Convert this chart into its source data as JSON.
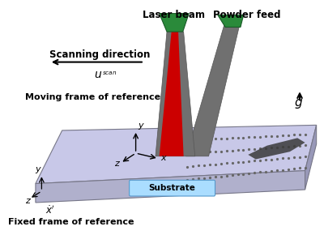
{
  "bg_color": "#ffffff",
  "plate_top_color": "#c8c8e8",
  "plate_front_color": "#b0b0cc",
  "plate_right_color": "#9898b8",
  "plate_edge_color": "#777788",
  "substrate_color": "#aaddff",
  "substrate_text": "Substrate",
  "laser_beam_color": "#cc0000",
  "gray_dark": "#555555",
  "gray_med": "#707070",
  "gray_light": "#909090",
  "nozzle_green_color": "#2a8a3a",
  "nozzle_green_dark": "#1a5a28",
  "labels": {
    "laser_beam": "Laser beam",
    "powder_feed": "Powder feed",
    "scanning_direction": "Scanning direction",
    "moving_frame": "Moving frame of reference",
    "fixed_frame": "Fixed frame of reference",
    "g": "g"
  },
  "figsize": [
    4.0,
    2.9
  ],
  "dpi": 100
}
